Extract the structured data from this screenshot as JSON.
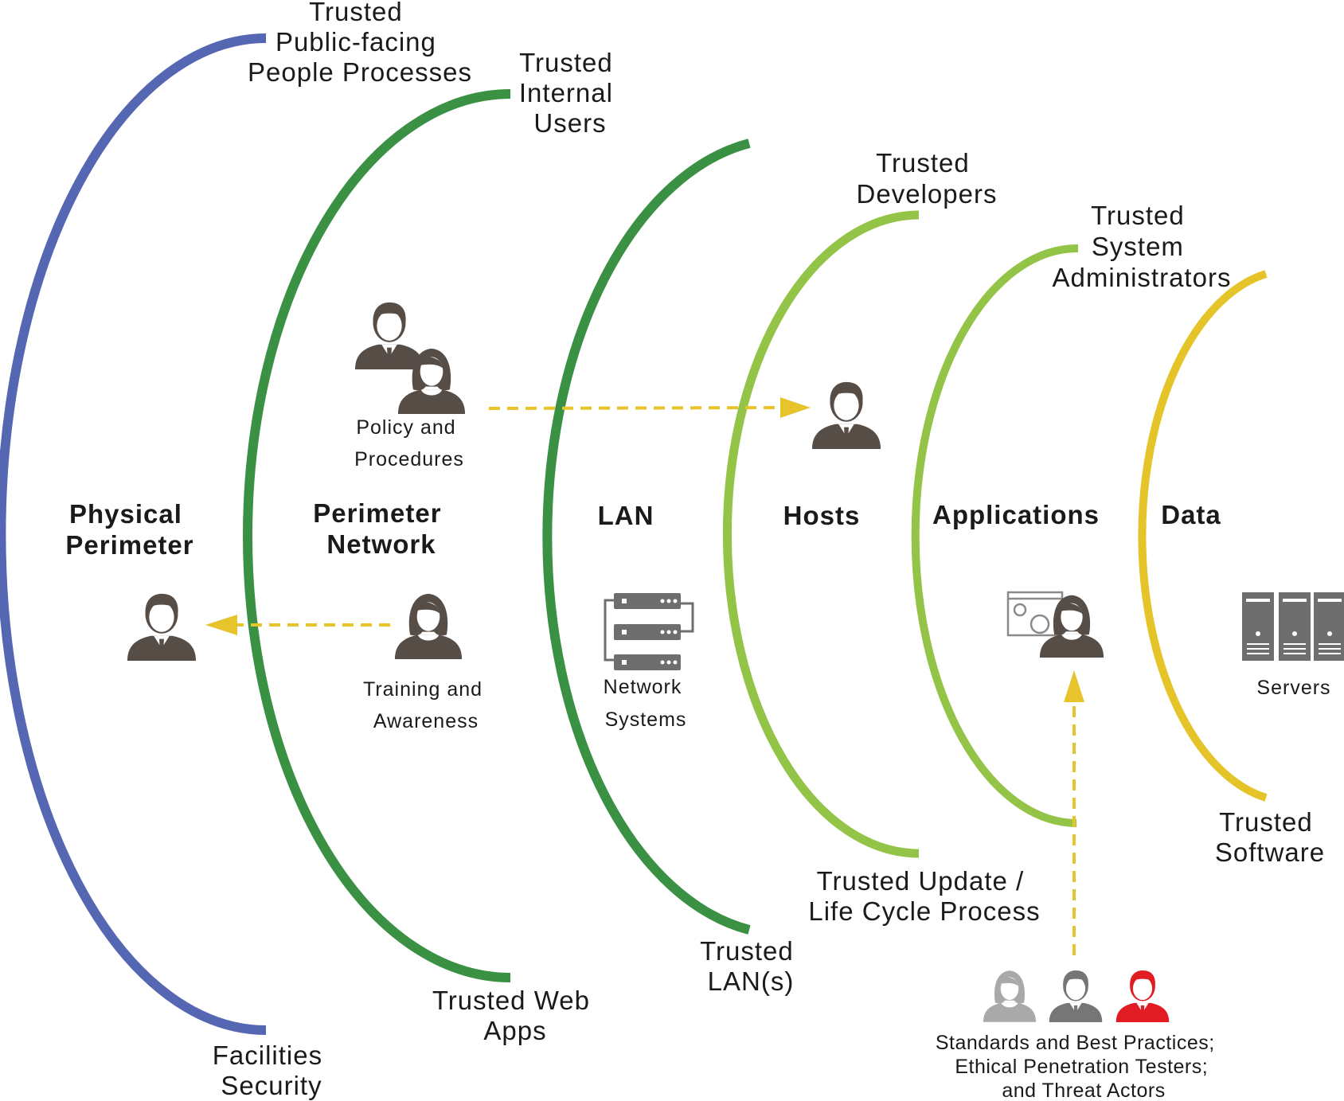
{
  "colors": {
    "physical": "#5566b3",
    "perimeter": "#3a9143",
    "lan": "#3a9143",
    "hosts": "#93c447",
    "applications": "#93c447",
    "data": "#e5c42a",
    "arrow": "#e7c42c",
    "person": "#574d47",
    "person_light": "#a9a9a9",
    "person_mid": "#767676",
    "person_red": "#e21c23",
    "server": "#6e6e6e"
  },
  "sections": {
    "physical": [
      "Physical",
      "Perimeter"
    ],
    "perimeter": [
      "Perimeter",
      "Network"
    ],
    "lan": "LAN",
    "hosts": "Hosts",
    "applications": "Applications",
    "data": "Data"
  },
  "ring_labels": {
    "physical_top": [
      "Trusted",
      "Public-facing",
      "People Processes"
    ],
    "physical_bottom": [
      "Facilities",
      "Security"
    ],
    "perimeter_top": [
      "Trusted",
      "Internal",
      "Users"
    ],
    "perimeter_bottom": [
      "Trusted Web",
      "Apps"
    ],
    "lan_bottom": [
      "Trusted",
      "LAN(s)"
    ],
    "hosts_top": [
      "Trusted",
      "Developers"
    ],
    "hosts_bottom": [
      "Trusted Update /",
      "Life Cycle Process"
    ],
    "applications_top": [
      "Trusted",
      "System",
      "Administrators"
    ],
    "data_bottom": [
      "Trusted",
      "Software"
    ]
  },
  "captions": {
    "policy": [
      "Policy and",
      "Procedures"
    ],
    "training": [
      "Training and",
      "Awareness"
    ],
    "network": [
      "Network",
      "Systems"
    ],
    "servers": "Servers",
    "testers": [
      "Standards and Best Practices;",
      "Ethical Penetration Testers;",
      "and Threat Actors"
    ]
  },
  "icons": {
    "policy_group": "user-group-icon",
    "host_admin": "user-icon",
    "physical_person": "user-icon",
    "training_person": "female-user-icon",
    "network_rack": "network-rack-icon",
    "app_admin": "app-settings-user-icon",
    "servers": "server-tower-icon",
    "tester_light": "female-user-icon",
    "tester_mid": "user-icon",
    "tester_red": "threat-actor-icon"
  }
}
